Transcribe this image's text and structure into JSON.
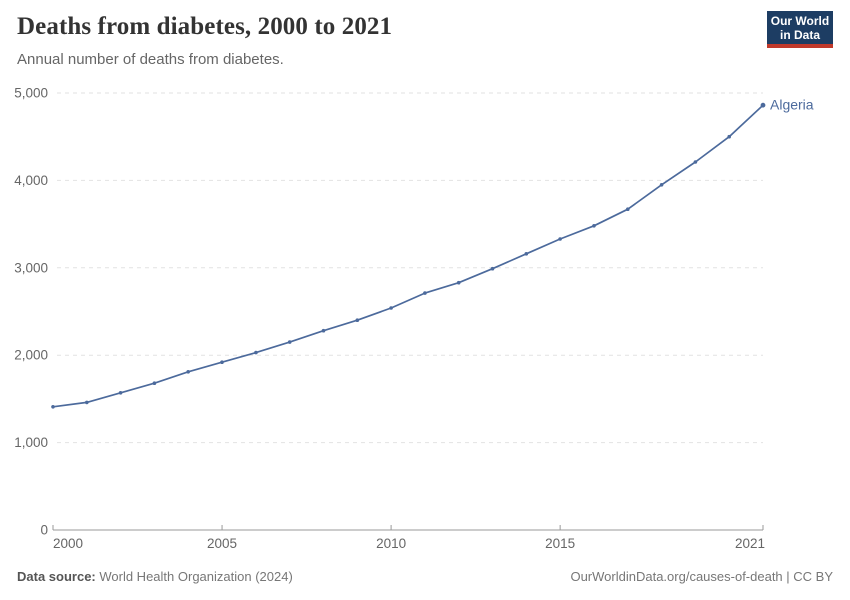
{
  "header": {
    "title": "Deaths from diabetes, 2000 to 2021",
    "subtitle": "Annual number of deaths from diabetes.",
    "logo_line1": "Our World",
    "logo_line2": "in Data"
  },
  "chart_data": {
    "type": "line",
    "title": "Deaths from diabetes, 2000 to 2021",
    "xlabel": "",
    "ylabel": "",
    "xlim": [
      2000,
      2021
    ],
    "ylim": [
      0,
      5000
    ],
    "grid": "horizontal-dashed",
    "legend_position": "end-of-line-label",
    "x_ticks": [
      2000,
      2005,
      2010,
      2015,
      2021
    ],
    "x_tick_labels": [
      "2000",
      "2005",
      "2010",
      "2015",
      "2021"
    ],
    "y_ticks": [
      0,
      1000,
      2000,
      3000,
      4000,
      5000
    ],
    "y_tick_labels": [
      "0",
      "1,000",
      "2,000",
      "3,000",
      "4,000",
      "5,000"
    ],
    "x": [
      2000,
      2001,
      2002,
      2003,
      2004,
      2005,
      2006,
      2007,
      2008,
      2009,
      2010,
      2011,
      2012,
      2013,
      2014,
      2015,
      2016,
      2017,
      2018,
      2019,
      2020,
      2021
    ],
    "series": [
      {
        "name": "Algeria",
        "color": "#4c6a9c",
        "values": [
          1410,
          1460,
          1570,
          1680,
          1810,
          1920,
          2030,
          2150,
          2280,
          2400,
          2540,
          2710,
          2830,
          2990,
          3160,
          3330,
          3480,
          3670,
          3950,
          4210,
          4500,
          4860
        ]
      }
    ],
    "colors": {
      "gridline": "#e2e2e2",
      "axis": "#999999",
      "tick_label": "#666666"
    }
  },
  "footer": {
    "source_label": "Data source:",
    "source_value": " World Health Organization (2024)",
    "rights": "OurWorldinData.org/causes-of-death | CC BY"
  }
}
